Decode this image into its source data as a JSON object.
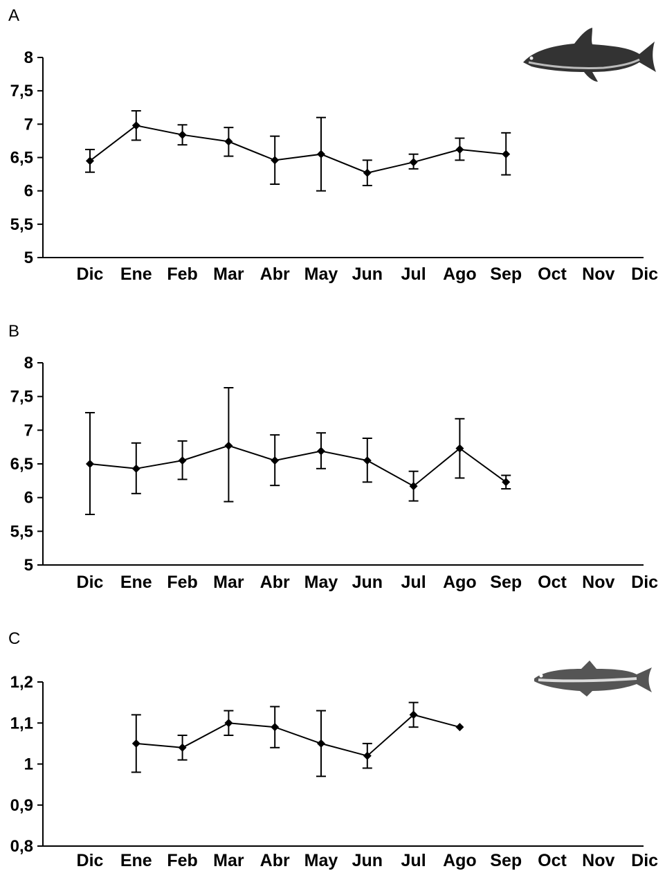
{
  "chart_data": [
    {
      "type": "line",
      "panel_label": "A",
      "categories": [
        "Dic",
        "Ene",
        "Feb",
        "Mar",
        "Abr",
        "May",
        "Jun",
        "Jul",
        "Ago",
        "Sep",
        "Oct",
        "Nov",
        "Dic"
      ],
      "ylim": [
        5,
        8
      ],
      "yticks": [
        5,
        5.5,
        6,
        6.5,
        7,
        7.5,
        8
      ],
      "ytick_labels": [
        "5",
        "5,5",
        "6",
        "6,5",
        "7",
        "7,5",
        "8"
      ],
      "grid": false,
      "image": "loach-fish-icon",
      "series": [
        {
          "values": [
            6.45,
            6.98,
            6.84,
            6.74,
            6.46,
            6.55,
            6.27,
            6.43,
            6.62,
            6.55,
            null,
            null,
            null
          ],
          "err_low": [
            6.28,
            6.76,
            6.69,
            6.52,
            6.1,
            6.0,
            6.08,
            6.33,
            6.46,
            6.24,
            null,
            null,
            null
          ],
          "err_high": [
            6.62,
            7.2,
            6.99,
            6.95,
            6.82,
            7.1,
            6.46,
            6.55,
            6.79,
            6.87,
            null,
            null,
            null
          ]
        }
      ]
    },
    {
      "type": "line",
      "panel_label": "B",
      "categories": [
        "Dic",
        "Ene",
        "Feb",
        "Mar",
        "Abr",
        "May",
        "Jun",
        "Jul",
        "Ago",
        "Sep",
        "Oct",
        "Nov",
        "Dic"
      ],
      "ylim": [
        5,
        8
      ],
      "yticks": [
        5,
        5.5,
        6,
        6.5,
        7,
        7.5,
        8
      ],
      "ytick_labels": [
        "5",
        "5,5",
        "6",
        "6,5",
        "7",
        "7,5",
        "8"
      ],
      "grid": false,
      "series": [
        {
          "values": [
            6.5,
            6.43,
            6.55,
            6.77,
            6.55,
            6.69,
            6.55,
            6.17,
            6.73,
            6.23,
            null,
            null,
            null
          ],
          "err_low": [
            5.75,
            6.06,
            6.27,
            5.94,
            6.18,
            6.43,
            6.23,
            5.95,
            6.29,
            6.13,
            null,
            null,
            null
          ],
          "err_high": [
            7.26,
            6.81,
            6.84,
            7.63,
            6.93,
            6.96,
            6.88,
            6.39,
            7.17,
            6.33,
            null,
            null,
            null
          ]
        }
      ]
    },
    {
      "type": "line",
      "panel_label": "C",
      "categories": [
        "Dic",
        "Ene",
        "Feb",
        "Mar",
        "Abr",
        "May",
        "Jun",
        "Jul",
        "Ago",
        "Sep",
        "Oct",
        "Nov",
        "Dic"
      ],
      "ylim": [
        0.8,
        1.2
      ],
      "yticks": [
        0.8,
        0.9,
        1.0,
        1.1,
        1.2
      ],
      "ytick_labels": [
        "0,8",
        "0,9",
        "1",
        "1,1",
        "1,2"
      ],
      "grid": false,
      "image": "minnow-fish-icon",
      "series": [
        {
          "values": [
            null,
            1.05,
            1.04,
            1.1,
            1.09,
            1.05,
            1.02,
            1.12,
            1.09,
            null,
            null,
            null,
            null
          ],
          "err_low": [
            null,
            0.98,
            1.01,
            1.07,
            1.04,
            0.97,
            0.99,
            1.09,
            null,
            null,
            null,
            null,
            null
          ],
          "err_high": [
            null,
            1.12,
            1.07,
            1.13,
            1.14,
            1.13,
            1.05,
            1.15,
            null,
            null,
            null,
            null,
            null
          ]
        }
      ]
    }
  ]
}
